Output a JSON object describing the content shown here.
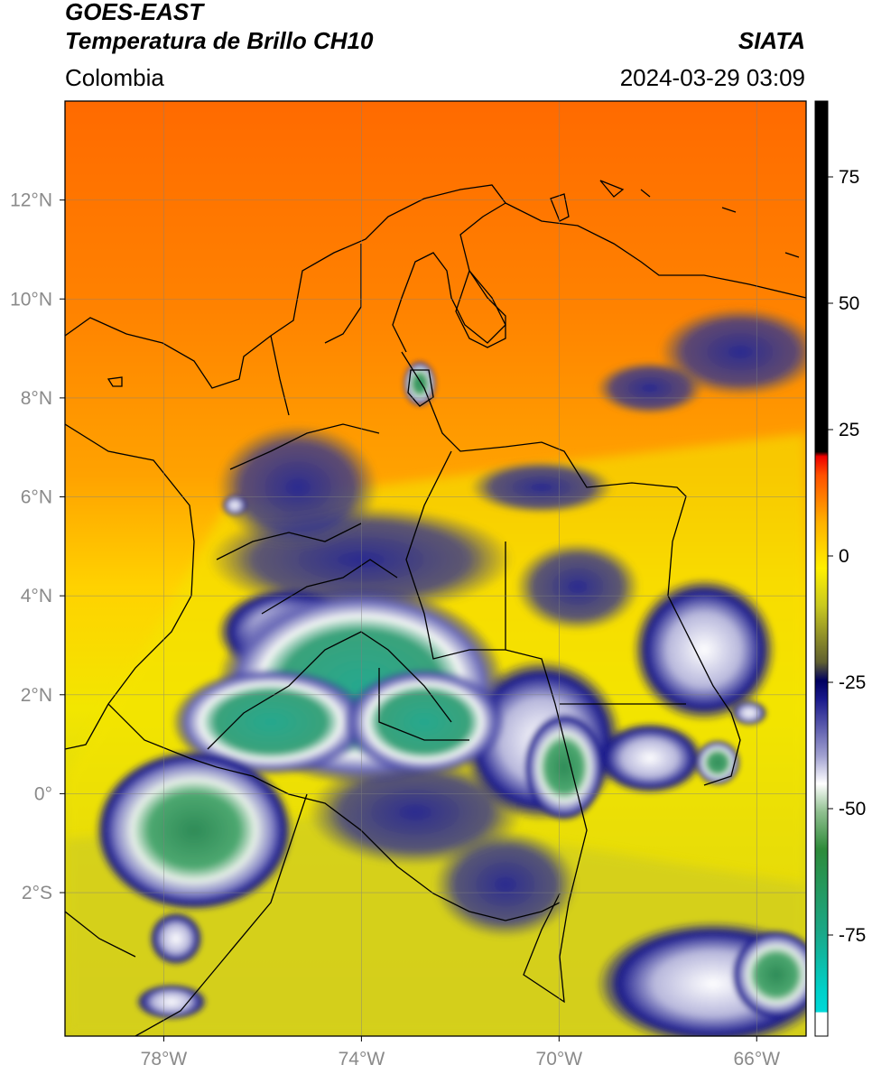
{
  "header": {
    "line1": "GOES-EAST",
    "line2": "Temperatura de Brillo CH10",
    "brand": "SIATA",
    "region": "Colombia",
    "timestamp": "2024-03-29 03:09"
  },
  "map": {
    "lon_range": [
      -80,
      -65
    ],
    "lat_range": [
      -4.9,
      14
    ],
    "lon_ticks": [
      {
        "value": -78,
        "label": "78°W"
      },
      {
        "value": -74,
        "label": "74°W"
      },
      {
        "value": -70,
        "label": "70°W"
      },
      {
        "value": -66,
        "label": "66°W"
      }
    ],
    "lat_ticks": [
      {
        "value": 12,
        "label": "12°N"
      },
      {
        "value": 10,
        "label": "10°N"
      },
      {
        "value": 8,
        "label": "8°N"
      },
      {
        "value": 6,
        "label": "6°N"
      },
      {
        "value": 4,
        "label": "4°N"
      },
      {
        "value": 2,
        "label": "2°N"
      },
      {
        "value": 0,
        "label": "0°"
      },
      {
        "value": -2,
        "label": "2°S"
      }
    ],
    "grid": true
  },
  "colorbar": {
    "range": [
      -95,
      90
    ],
    "ticks": [
      {
        "value": 75,
        "label": "75"
      },
      {
        "value": 50,
        "label": "50"
      },
      {
        "value": 25,
        "label": "25"
      },
      {
        "value": 0,
        "label": "0"
      },
      {
        "value": -25,
        "label": "-25"
      },
      {
        "value": -50,
        "label": "-50"
      },
      {
        "value": -75,
        "label": "-75"
      }
    ]
  },
  "colors": {
    "hot": "#ff6a00",
    "warm": "#ffa000",
    "mid": "#ffe600",
    "olive": "#c8c81e",
    "cold": "#1a1a8c",
    "colder": "#ffffff",
    "coldest": "#2e8b57",
    "extreme": "#20b2a0"
  }
}
